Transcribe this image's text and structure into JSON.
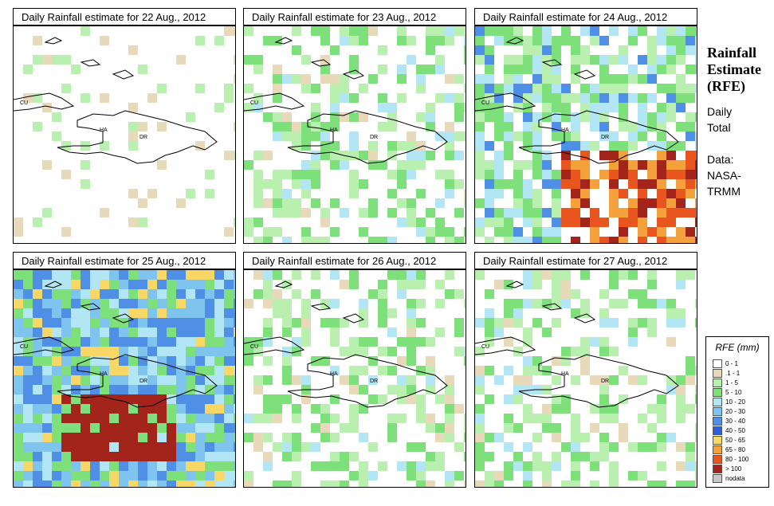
{
  "panels": [
    {
      "title": "Daily Rainfall estimate for  22 Aug., 2012",
      "intensity": 0
    },
    {
      "title": "Daily Rainfall estimate for  23 Aug., 2012",
      "intensity": 1
    },
    {
      "title": "Daily Rainfall estimate for  24 Aug., 2012",
      "intensity": 2
    },
    {
      "title": "Daily Rainfall estimate for  25 Aug., 2012",
      "intensity": 3
    },
    {
      "title": "Daily Rainfall estimate for  26 Aug., 2012",
      "intensity": 1
    },
    {
      "title": "Daily Rainfall estimate for  27 Aug., 2012",
      "intensity": 1
    }
  ],
  "map_labels": {
    "cu": "CU",
    "ha": "HA",
    "dr": "DR"
  },
  "side": {
    "title_line1": "Rainfall",
    "title_line2": "Estimate",
    "title_line3": "(RFE)",
    "daily": "Daily",
    "total": "Total",
    "data": "Data:",
    "source1": "NASA-",
    "source2": "TRMM"
  },
  "legend": {
    "title": "RFE (mm)",
    "items": [
      {
        "label": "0 - 1",
        "color": "#ffffff"
      },
      {
        "label": ".1 - 1",
        "color": "#e8d9bb"
      },
      {
        "label": "1 - 5",
        "color": "#b9f0b0"
      },
      {
        "label": "5 - 10",
        "color": "#7de07a"
      },
      {
        "label": "10 - 20",
        "color": "#b3e6f5"
      },
      {
        "label": "20 - 30",
        "color": "#7fc4ef"
      },
      {
        "label": "30 - 40",
        "color": "#4f8fe6"
      },
      {
        "label": "40 - 50",
        "color": "#2f5fd6"
      },
      {
        "label": "50 - 65",
        "color": "#f7d766"
      },
      {
        "label": "65 - 80",
        "color": "#f5a13b"
      },
      {
        "label": "80 - 100",
        "color": "#e8551e"
      },
      {
        "label": "> 100",
        "color": "#a3241a"
      },
      {
        "label": "nodata",
        "color": "#c8c8c8"
      }
    ]
  }
}
